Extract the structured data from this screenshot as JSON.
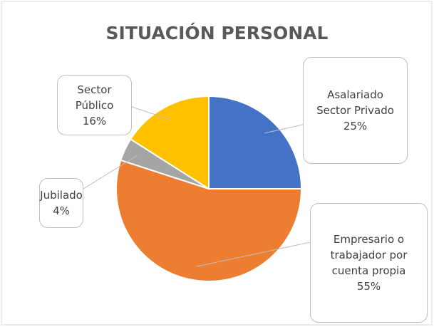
{
  "chart_data": {
    "type": "pie",
    "title": "SITUACIÓN PERSONAL",
    "categories": [
      "Asalariado Sector Privado",
      "Empresario o trabajador por cuenta propia",
      "Jubilado",
      "Sector Público"
    ],
    "values": [
      25,
      55,
      4,
      16
    ],
    "value_labels": [
      "25%",
      "55%",
      "4%",
      "16%"
    ],
    "colors": [
      "#4472c4",
      "#ed7d31",
      "#a5a5a5",
      "#ffc000"
    ]
  }
}
